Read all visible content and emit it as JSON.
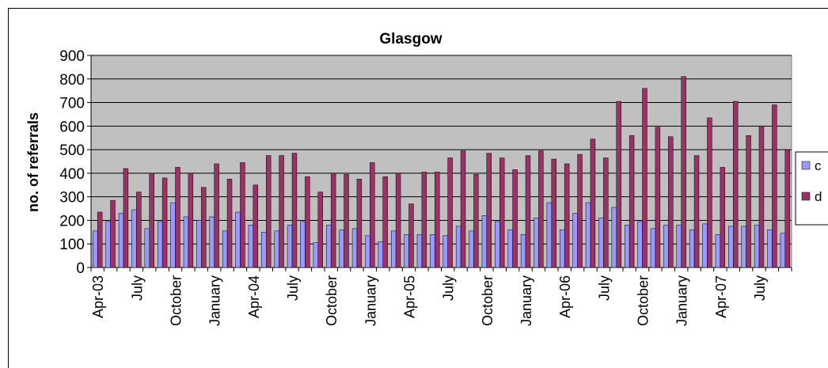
{
  "chart_data": {
    "type": "bar",
    "title": "Glasgow",
    "y_label": "no. of referrals",
    "categories": [
      "Apr-03",
      null,
      null,
      "July",
      null,
      null,
      "October",
      null,
      null,
      "January",
      null,
      null,
      "Apr-04",
      null,
      null,
      "July",
      null,
      null,
      "October",
      null,
      null,
      "January",
      null,
      null,
      "Apr-05",
      null,
      null,
      "July",
      null,
      null,
      "October",
      null,
      null,
      "January",
      null,
      null,
      "Apr-06",
      null,
      null,
      "July",
      null,
      null,
      "October",
      null,
      null,
      "January",
      null,
      null,
      "Apr-07",
      null,
      null,
      "July",
      null,
      null
    ],
    "series": [
      {
        "name": "c",
        "color": "#9999ff",
        "values": [
          155,
          195,
          230,
          245,
          165,
          195,
          275,
          215,
          200,
          215,
          155,
          235,
          180,
          150,
          155,
          180,
          195,
          105,
          180,
          160,
          165,
          135,
          110,
          155,
          140,
          140,
          140,
          135,
          175,
          155,
          220,
          195,
          160,
          140,
          210,
          275,
          160,
          230,
          275,
          210,
          255,
          180,
          195,
          165,
          180,
          180,
          160,
          185,
          140,
          175,
          175,
          180,
          160,
          145
        ]
      },
      {
        "name": "d",
        "color": "#993366",
        "values": [
          235,
          285,
          420,
          320,
          400,
          380,
          425,
          400,
          340,
          440,
          375,
          445,
          350,
          475,
          475,
          485,
          385,
          320,
          400,
          395,
          375,
          445,
          385,
          400,
          270,
          405,
          405,
          465,
          495,
          395,
          485,
          465,
          415,
          475,
          495,
          460,
          440,
          480,
          545,
          465,
          705,
          560,
          760,
          595,
          555,
          810,
          475,
          635,
          425,
          705,
          560,
          600,
          690,
          500
        ]
      }
    ],
    "ylim": [
      0,
      900
    ],
    "yticks": [
      0,
      100,
      200,
      300,
      400,
      500,
      600,
      700,
      800,
      900
    ],
    "grid": true,
    "plot_color": "#c0c0c0",
    "legend": "right"
  }
}
